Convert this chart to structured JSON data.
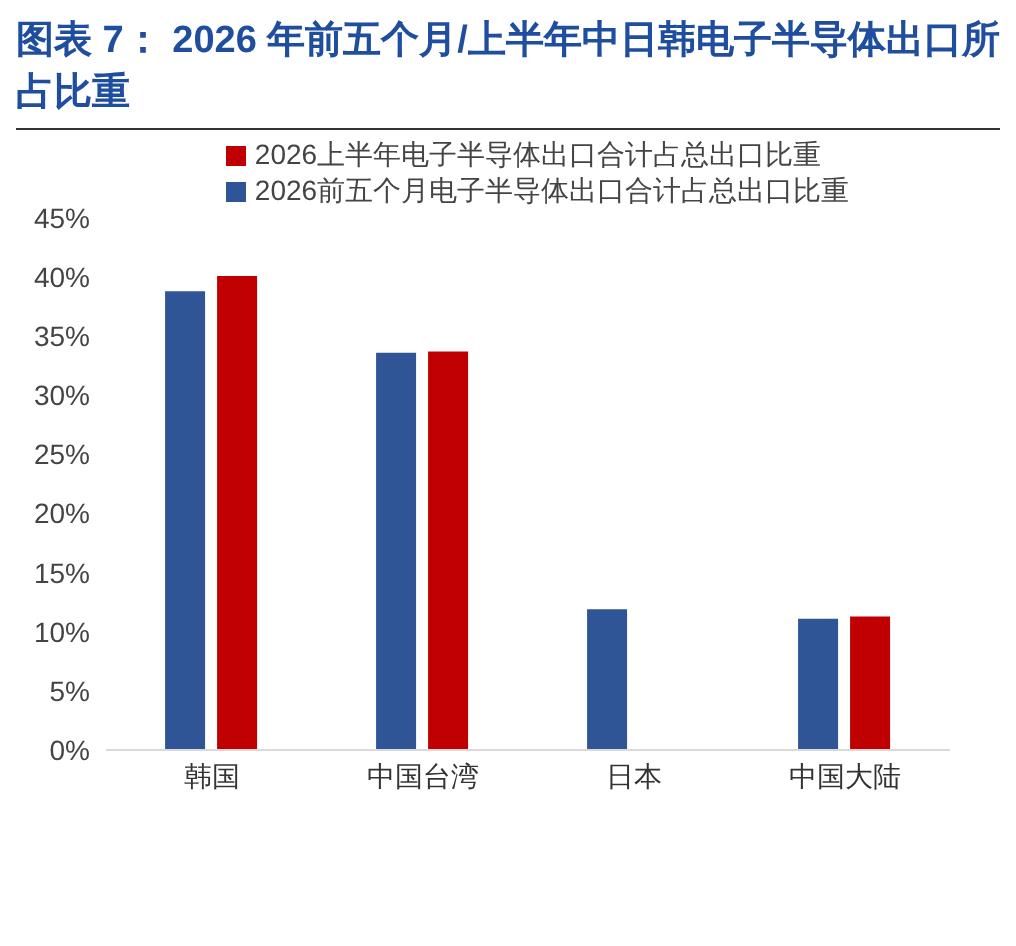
{
  "chart_data": {
    "type": "bar",
    "title": "图表 7：  2026 年前五个月/上半年中日韩电子半导体出口所占比重",
    "categories": [
      "韩国",
      "中国台湾",
      "日本",
      "中国大陆"
    ],
    "series": [
      {
        "name": "2026前五个月电子半导体出口合计占总出口比重",
        "color": "#2f5597",
        "values": [
          38.8,
          33.6,
          11.9,
          11.1
        ]
      },
      {
        "name": "2026上半年电子半导体出口合计占总出口比重",
        "color": "#c00000",
        "values": [
          40.1,
          33.7,
          null,
          11.3
        ]
      }
    ],
    "ylim": [
      0,
      45
    ],
    "yticks": [
      {
        "value": 0,
        "label": "0%"
      },
      {
        "value": 5,
        "label": "5%"
      },
      {
        "value": 10,
        "label": "10%"
      },
      {
        "value": 15,
        "label": "15%"
      },
      {
        "value": 20,
        "label": "20%"
      },
      {
        "value": 25,
        "label": "25%"
      },
      {
        "value": 30,
        "label": "30%"
      },
      {
        "value": 35,
        "label": "35%"
      },
      {
        "value": 40,
        "label": "40%"
      },
      {
        "value": 45,
        "label": "45%"
      }
    ],
    "grid": false,
    "legend": "top"
  }
}
